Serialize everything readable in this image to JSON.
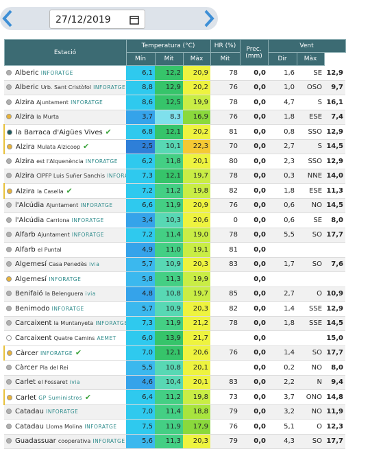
{
  "header": {
    "date": "27/12/2019"
  },
  "table": {
    "headers": {
      "station": "Estació",
      "temp": "Temperatura (°C)",
      "hr": "HR (%)",
      "prec": "Prec. (mm)",
      "wind": "Vent"
    },
    "subheaders": [
      "Mín",
      "Mit",
      "Màx",
      "Mit",
      "Mit",
      "Dir",
      "Màx"
    ],
    "rows": [
      {
        "name": "Alberic",
        "source": "INFORATGE",
        "dot": "#b0b0b0",
        "min": "6,1",
        "mit": "12,2",
        "max": "20,9",
        "hr": "78",
        "prec": "0,0",
        "wind": "1,6",
        "dir": "SE",
        "gust": "12,9"
      },
      {
        "name": "Alberic",
        "place": "Urb. Sant Cristòfol",
        "source": "INFORATGE",
        "dot": "#b0b0b0",
        "min": "8,8",
        "mit": "12,9",
        "max": "20,2",
        "hr": "76",
        "prec": "0,0",
        "wind": "1,0",
        "dir": "OSO",
        "gust": "9,7"
      },
      {
        "name": "Alzira",
        "place": "Ajuntament",
        "source": "INFORATGE",
        "dot": "#b0b0b0",
        "min": "8,6",
        "mit": "12,5",
        "max": "19,9",
        "hr": "78",
        "prec": "0,0",
        "wind": "4,7",
        "dir": "S",
        "gust": "16,1"
      },
      {
        "name": "Alzira",
        "place": "la Murta",
        "dot": "#e8b33a",
        "min": "3,7",
        "mit": "8,3",
        "max": "16,9",
        "hr": "76",
        "prec": "0,0",
        "wind": "1,8",
        "dir": "ESE",
        "gust": "7,4"
      },
      {
        "name": "la Barraca d'Aigües Vives",
        "check": true,
        "dot": "#1f5a5e",
        "min": "6,8",
        "mit": "12,1",
        "max": "20,2",
        "hr": "81",
        "prec": "0,0",
        "wind": "0,8",
        "dir": "SSO",
        "gust": "12,9"
      },
      {
        "name": "Alzira",
        "place": "Mulata Alzicoop",
        "check": true,
        "dot": "#e8b33a",
        "min": "2,5",
        "mit": "10,1",
        "max": "22,3",
        "hr": "70",
        "prec": "0,0",
        "wind": "2,7",
        "dir": "S",
        "gust": "14,5"
      },
      {
        "name": "Alzira",
        "place": "est l'Alquenència",
        "source": "INFORATGE",
        "dot": "#b0b0b0",
        "min": "6,2",
        "mit": "11,8",
        "max": "20,1",
        "hr": "80",
        "prec": "0,0",
        "wind": "2,3",
        "dir": "SSO",
        "gust": "12,9"
      },
      {
        "name": "Alzira",
        "place": "CIPFP Luis Suñer Sanchis",
        "source": "INFORATGE",
        "dot": "#b0b0b0",
        "min": "7,3",
        "mit": "12,1",
        "max": "19,7",
        "hr": "78",
        "prec": "0,0",
        "wind": "0,3",
        "dir": "NNE",
        "gust": "14,0"
      },
      {
        "name": "Alzira",
        "place": "la Casella",
        "check": true,
        "dot": "#e8b33a",
        "min": "7,2",
        "mit": "11,2",
        "max": "19,8",
        "hr": "82",
        "prec": "0,0",
        "wind": "1,8",
        "dir": "ESE",
        "gust": "11,3"
      },
      {
        "name": "l'Alcúdia",
        "place": "Ajuntament",
        "source": "INFORATGE",
        "dot": "#b0b0b0",
        "min": "6,6",
        "mit": "11,9",
        "max": "20,9",
        "hr": "76",
        "prec": "0,0",
        "wind": "0,6",
        "dir": "NO",
        "gust": "14,5"
      },
      {
        "name": "l'Alcúdia",
        "place": "Carriona",
        "source": "INFORATGE",
        "dot": "#b0b0b0",
        "min": "3,4",
        "mit": "10,3",
        "max": "20,6",
        "hr": "0",
        "prec": "0,0",
        "wind": "0,6",
        "dir": "SE",
        "gust": "8,0"
      },
      {
        "name": "Alfarb",
        "place": "Ajuntament",
        "source": "INFORATGE",
        "dot": "#b0b0b0",
        "min": "7,2",
        "mit": "11,4",
        "max": "19,0",
        "hr": "78",
        "prec": "0,0",
        "wind": "5,5",
        "dir": "SO",
        "gust": "17,7"
      },
      {
        "name": "Alfarb",
        "place": "el Puntal",
        "dot": "#b0b0b0",
        "min": "4,9",
        "mit": "11,0",
        "max": "19,1",
        "hr": "81",
        "prec": "0,0"
      },
      {
        "name": "Algemesí",
        "place": "Casa Penedès",
        "source": "ivia",
        "dot": "#b0b0b0",
        "min": "5,7",
        "mit": "10,9",
        "max": "20,3",
        "hr": "83",
        "prec": "0,0",
        "wind": "1,7",
        "dir": "SO",
        "gust": "7,6"
      },
      {
        "name": "Algemesí",
        "source": "INFORATGE",
        "dot": "#e8b33a",
        "min": "5,8",
        "mit": "11,3",
        "max": "19,9",
        "prec": "0,0"
      },
      {
        "name": "Benifaió",
        "place": "la Belenguera",
        "source": "ivia",
        "dot": "#b0b0b0",
        "min": "4,8",
        "mit": "10,8",
        "max": "19,7",
        "hr": "85",
        "prec": "0,0",
        "wind": "2,7",
        "dir": "O",
        "gust": "10,9"
      },
      {
        "name": "Benimodo",
        "source": "INFORATGE",
        "dot": "#b0b0b0",
        "min": "5,7",
        "mit": "10,9",
        "max": "20,3",
        "hr": "82",
        "prec": "0,0",
        "wind": "1,4",
        "dir": "SSE",
        "gust": "12,9"
      },
      {
        "name": "Carcaixent",
        "place": "la Muntanyeta",
        "source": "INFORATGE",
        "dot": "#b0b0b0",
        "min": "7,3",
        "mit": "11,9",
        "max": "21,2",
        "hr": "78",
        "prec": "0,0",
        "wind": "1,8",
        "dir": "SSE",
        "gust": "14,5"
      },
      {
        "name": "Carcaixent",
        "place": "Quatre Camins",
        "source": "AEMET",
        "dot": "#ffffff",
        "min": "6,0",
        "mit": "13,9",
        "max": "21,7",
        "prec": "0,0",
        "gust": "15,0"
      },
      {
        "name": "Càrcer",
        "source": "INFORATGE",
        "check": true,
        "dot": "#e8b33a",
        "min": "7,0",
        "mit": "12,1",
        "max": "20,6",
        "hr": "76",
        "prec": "0,0",
        "wind": "1,4",
        "dir": "SO",
        "gust": "17,7"
      },
      {
        "name": "Càrcer",
        "place": "Pla del Rei",
        "dot": "#b0b0b0",
        "min": "5,5",
        "mit": "10,8",
        "max": "20,1",
        "prec": "0,0",
        "wind": "0,2",
        "dir": "NO",
        "gust": "8,0"
      },
      {
        "name": "Carlet",
        "place": "el Fossaret",
        "source": "ivia",
        "dot": "#b0b0b0",
        "min": "4,6",
        "mit": "10,4",
        "max": "20,1",
        "hr": "83",
        "prec": "0,0",
        "wind": "2,2",
        "dir": "N",
        "gust": "9,4"
      },
      {
        "name": "Carlet",
        "source": "GP Suministros",
        "check": true,
        "dot": "#e8b33a",
        "min": "6,4",
        "mit": "11,2",
        "max": "19,8",
        "hr": "73",
        "prec": "0,0",
        "wind": "3,7",
        "dir": "ONO",
        "gust": "14,8"
      },
      {
        "name": "Catadau",
        "source": "INFORATGE",
        "dot": "#b0b0b0",
        "min": "7,0",
        "mit": "11,4",
        "max": "18,8",
        "hr": "79",
        "prec": "0,0",
        "wind": "3,2",
        "dir": "NO",
        "gust": "11,9"
      },
      {
        "name": "Catadau",
        "place": "Lloma Molina",
        "source": "INFORATGE",
        "dot": "#b0b0b0",
        "min": "7,5",
        "mit": "11,9",
        "max": "17,9",
        "hr": "76",
        "prec": "0,0",
        "wind": "5,1",
        "dir": "O",
        "gust": "12,3"
      },
      {
        "name": "Guadassuar",
        "place": "cooperativa",
        "source": "INFORATGE",
        "dot": "#b0b0b0",
        "min": "5,6",
        "mit": "11,3",
        "max": "20,3",
        "hr": "79",
        "prec": "0,0",
        "wind": "4,3",
        "dir": "SO",
        "gust": "17,7"
      }
    ]
  }
}
